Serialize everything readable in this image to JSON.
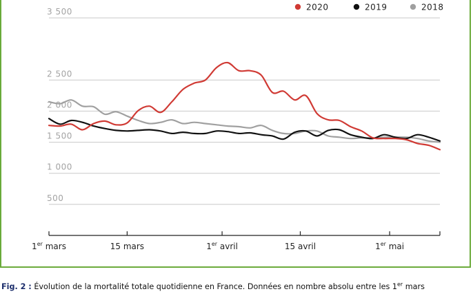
{
  "colors": {
    "frame": "#6aaa3a",
    "grid": "#c8c8c8",
    "axis": "#222222",
    "series_2020": "#d03a34",
    "series_2019": "#111111",
    "series_2018": "#a0a0a0"
  },
  "caption": {
    "label": "Fig. 2 :",
    "text": "Évolution de la mortalité totale quotidienne en France. Données en nombre absolu entre les 1",
    "sup": "er",
    "tail": " mars"
  },
  "chart_data": {
    "type": "line",
    "x_unit": "day",
    "x": [
      "2020-03-01",
      "2020-03-03",
      "2020-03-05",
      "2020-03-07",
      "2020-03-09",
      "2020-03-11",
      "2020-03-13",
      "2020-03-15",
      "2020-03-17",
      "2020-03-19",
      "2020-03-21",
      "2020-03-23",
      "2020-03-25",
      "2020-03-27",
      "2020-03-29",
      "2020-03-31",
      "2020-04-02",
      "2020-04-04",
      "2020-04-06",
      "2020-04-08",
      "2020-04-10",
      "2020-04-12",
      "2020-04-14",
      "2020-04-16",
      "2020-04-18",
      "2020-04-20",
      "2020-04-22",
      "2020-04-24",
      "2020-04-26",
      "2020-04-28",
      "2020-04-30",
      "2020-05-02",
      "2020-05-04",
      "2020-05-06",
      "2020-05-08",
      "2020-05-10"
    ],
    "series": [
      {
        "name": "2020",
        "color": "#d03a34",
        "values": [
          1770,
          1760,
          1790,
          1700,
          1800,
          1840,
          1780,
          1810,
          2010,
          2080,
          1980,
          2150,
          2350,
          2450,
          2500,
          2700,
          2780,
          2650,
          2650,
          2580,
          2300,
          2320,
          2180,
          2250,
          1960,
          1860,
          1850,
          1750,
          1680,
          1570,
          1560,
          1560,
          1540,
          1480,
          1450,
          1380
        ]
      },
      {
        "name": "2019",
        "color": "#111111",
        "values": [
          1880,
          1790,
          1850,
          1820,
          1760,
          1720,
          1690,
          1680,
          1690,
          1700,
          1680,
          1640,
          1660,
          1640,
          1640,
          1680,
          1670,
          1640,
          1650,
          1620,
          1600,
          1550,
          1660,
          1680,
          1600,
          1690,
          1700,
          1620,
          1580,
          1560,
          1620,
          1580,
          1560,
          1620,
          1580,
          1520
        ]
      },
      {
        "name": "2018",
        "color": "#a0a0a0",
        "values": [
          2150,
          2120,
          2180,
          2080,
          2070,
          1950,
          1990,
          1920,
          1850,
          1800,
          1820,
          1860,
          1800,
          1820,
          1800,
          1780,
          1760,
          1750,
          1730,
          1770,
          1690,
          1640,
          1640,
          1680,
          1680,
          1600,
          1580,
          1560,
          1570,
          1570,
          1580,
          1580,
          1580,
          1560,
          1520,
          1500
        ]
      }
    ],
    "ylim": [
      0,
      3500
    ],
    "yticks": [
      {
        "value": 500,
        "label": "500"
      },
      {
        "value": 1000,
        "label": "1 000"
      },
      {
        "value": 1500,
        "label": "1 500"
      },
      {
        "value": 2000,
        "label": "2 000"
      },
      {
        "value": 2500,
        "label": "2 500"
      },
      {
        "value": 3500,
        "label": "3 500"
      }
    ],
    "xticks": [
      {
        "date": "2020-03-01",
        "label": "1",
        "sup": "er",
        "rest": " mars"
      },
      {
        "date": "2020-03-15",
        "label": "15 mars",
        "sup": "",
        "rest": ""
      },
      {
        "date": "2020-04-01",
        "label": "1",
        "sup": "er",
        "rest": " avril"
      },
      {
        "date": "2020-04-15",
        "label": "15 avril",
        "sup": "",
        "rest": ""
      },
      {
        "date": "2020-05-01",
        "label": "1",
        "sup": "er",
        "rest": " mai"
      }
    ],
    "legend": {
      "position": "top-right",
      "order": [
        "2020",
        "2019",
        "2018"
      ]
    },
    "grid": true
  }
}
